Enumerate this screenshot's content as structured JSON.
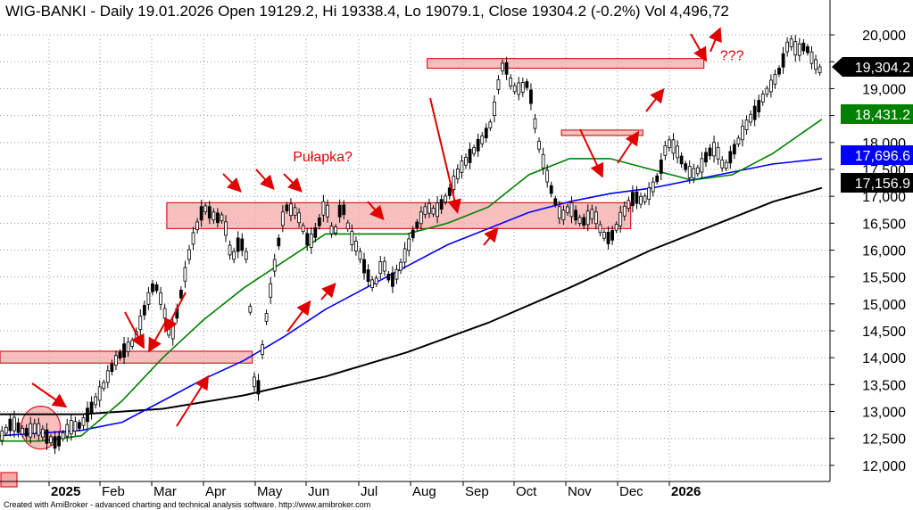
{
  "chart_data": {
    "type": "candlestick",
    "title": "WIG-BANKI - Daily 19.01.2026 Open 19129.2, Hi 19338.4, Lo 19079.1, Close 19304.2 (-0.2%) Vol 4,496,72",
    "credit": "Created with AmiBroker - advanced charting and technical analysis software. http://www.amibroker.com",
    "ylim": [
      11700,
      20250
    ],
    "yticks": [
      "12,000",
      "12,500",
      "13,000",
      "13,500",
      "14,000",
      "14,500",
      "15,000",
      "15,500",
      "16,000",
      "16,500",
      "17,000",
      "17,500",
      "18,000",
      "18,500",
      "19,000",
      "19,500",
      "20,000"
    ],
    "ytick_values": [
      12000,
      12500,
      13000,
      13500,
      14000,
      14500,
      15000,
      15500,
      16000,
      16500,
      17000,
      17500,
      18000,
      18500,
      19000,
      19500,
      20000
    ],
    "xticks": [
      {
        "label": "2025",
        "bold": true
      },
      {
        "label": "Feb",
        "bold": false
      },
      {
        "label": "Mar",
        "bold": false
      },
      {
        "label": "Apr",
        "bold": false
      },
      {
        "label": "May",
        "bold": false
      },
      {
        "label": "Jun",
        "bold": false
      },
      {
        "label": "Jul",
        "bold": false
      },
      {
        "label": "Aug",
        "bold": false
      },
      {
        "label": "Sep",
        "bold": false
      },
      {
        "label": "Oct",
        "bold": false
      },
      {
        "label": "Nov",
        "bold": false
      },
      {
        "label": "Dec",
        "bold": false
      },
      {
        "label": "2026",
        "bold": true
      }
    ],
    "price_path": [
      [
        0,
        12500
      ],
      [
        3,
        12800
      ],
      [
        6,
        12600
      ],
      [
        9,
        12700
      ],
      [
        12,
        12500
      ],
      [
        14,
        12400
      ],
      [
        17,
        12700
      ],
      [
        20,
        12750
      ],
      [
        22,
        13000
      ],
      [
        25,
        13400
      ],
      [
        28,
        13900
      ],
      [
        30,
        14100
      ],
      [
        33,
        14300
      ],
      [
        36,
        15000
      ],
      [
        38,
        15400
      ],
      [
        40,
        15000
      ],
      [
        42,
        14300
      ],
      [
        44,
        15000
      ],
      [
        47,
        16100
      ],
      [
        50,
        16800
      ],
      [
        53,
        16600
      ],
      [
        55,
        16600
      ],
      [
        57,
        15800
      ],
      [
        59,
        16200
      ],
      [
        61,
        15800
      ],
      [
        62,
        14000
      ],
      [
        63,
        13100
      ],
      [
        65,
        14500
      ],
      [
        67,
        15500
      ],
      [
        70,
        16800
      ],
      [
        73,
        16700
      ],
      [
        76,
        16100
      ],
      [
        78,
        16400
      ],
      [
        80,
        16900
      ],
      [
        82,
        16200
      ],
      [
        84,
        16900
      ],
      [
        86,
        16300
      ],
      [
        88,
        16000
      ],
      [
        90,
        15600
      ],
      [
        92,
        15300
      ],
      [
        94,
        15800
      ],
      [
        96,
        15400
      ],
      [
        98,
        15600
      ],
      [
        100,
        16000
      ],
      [
        102,
        16400
      ],
      [
        105,
        16800
      ],
      [
        107,
        16700
      ],
      [
        110,
        17000
      ],
      [
        113,
        17500
      ],
      [
        116,
        17800
      ],
      [
        119,
        18100
      ],
      [
        121,
        18400
      ],
      [
        123,
        19300
      ],
      [
        124,
        19500
      ],
      [
        126,
        19000
      ],
      [
        128,
        19000
      ],
      [
        130,
        19100
      ],
      [
        132,
        18100
      ],
      [
        134,
        17500
      ],
      [
        136,
        17000
      ],
      [
        138,
        16600
      ],
      [
        140,
        16800
      ],
      [
        143,
        16500
      ],
      [
        146,
        16700
      ],
      [
        148,
        16300
      ],
      [
        150,
        16200
      ],
      [
        152,
        16500
      ],
      [
        154,
        16800
      ],
      [
        156,
        17000
      ],
      [
        158,
        16900
      ],
      [
        160,
        17100
      ],
      [
        162,
        17400
      ],
      [
        164,
        18000
      ],
      [
        166,
        17900
      ],
      [
        168,
        17600
      ],
      [
        170,
        17400
      ],
      [
        172,
        17500
      ],
      [
        174,
        17800
      ],
      [
        176,
        17900
      ],
      [
        178,
        17500
      ],
      [
        180,
        17800
      ],
      [
        182,
        18100
      ],
      [
        184,
        18400
      ],
      [
        186,
        18600
      ],
      [
        188,
        18900
      ],
      [
        190,
        19100
      ],
      [
        192,
        19400
      ],
      [
        194,
        19900
      ],
      [
        196,
        19700
      ],
      [
        198,
        19800
      ],
      [
        200,
        19500
      ],
      [
        202,
        19300
      ]
    ],
    "ma_short_path": [
      [
        0,
        12450
      ],
      [
        10,
        12450
      ],
      [
        20,
        12550
      ],
      [
        30,
        13200
      ],
      [
        40,
        14000
      ],
      [
        50,
        14700
      ],
      [
        60,
        15300
      ],
      [
        70,
        15800
      ],
      [
        80,
        16300
      ],
      [
        90,
        16300
      ],
      [
        100,
        16300
      ],
      [
        110,
        16500
      ],
      [
        120,
        16800
      ],
      [
        130,
        17400
      ],
      [
        140,
        17700
      ],
      [
        150,
        17700
      ],
      [
        160,
        17500
      ],
      [
        170,
        17300
      ],
      [
        180,
        17400
      ],
      [
        190,
        17800
      ],
      [
        202,
        18431
      ]
    ],
    "ma_long_path": [
      [
        0,
        12550
      ],
      [
        10,
        12600
      ],
      [
        20,
        12650
      ],
      [
        30,
        12800
      ],
      [
        40,
        13200
      ],
      [
        50,
        13600
      ],
      [
        60,
        13950
      ],
      [
        70,
        14400
      ],
      [
        80,
        14900
      ],
      [
        90,
        15300
      ],
      [
        100,
        15700
      ],
      [
        110,
        16100
      ],
      [
        120,
        16400
      ],
      [
        130,
        16700
      ],
      [
        140,
        16900
      ],
      [
        150,
        17050
      ],
      [
        160,
        17150
      ],
      [
        170,
        17300
      ],
      [
        180,
        17450
      ],
      [
        190,
        17600
      ],
      [
        202,
        17696
      ]
    ],
    "ma_200_path": [
      [
        0,
        12950
      ],
      [
        20,
        12950
      ],
      [
        40,
        13050
      ],
      [
        60,
        13300
      ],
      [
        80,
        13650
      ],
      [
        100,
        14100
      ],
      [
        120,
        14650
      ],
      [
        140,
        15300
      ],
      [
        160,
        16000
      ],
      [
        180,
        16600
      ],
      [
        190,
        16900
      ],
      [
        202,
        17157
      ]
    ],
    "price_badges": [
      {
        "label": "19,304.2",
        "value": 19304.2,
        "bg": "#000000",
        "fg": "#ffffff",
        "arrow": true
      },
      {
        "label": "18,431.2",
        "value": 18431.2,
        "bg": "#008000",
        "fg": "#ffffff",
        "arrow": false
      },
      {
        "label": "17,696.6",
        "value": 17696.6,
        "bg": "#0000ff",
        "fg": "#ffffff",
        "arrow": false
      },
      {
        "label": "17,156.9",
        "value": 17156.9,
        "bg": "#000000",
        "fg": "#ffffff",
        "arrow": false
      }
    ],
    "zones": [
      {
        "x0": 0,
        "x1": 62,
        "y0": 13900,
        "y1": 14120
      },
      {
        "x0": 41,
        "x1": 155,
        "y0": 16400,
        "y1": 16880
      },
      {
        "x0": 105,
        "x1": 173,
        "y0": 19380,
        "y1": 19560
      },
      {
        "x0": 138,
        "x1": 158,
        "y0": 18130,
        "y1": 18230
      }
    ],
    "annotations": [
      {
        "text": "Pułapka?",
        "x": 72,
        "y": 17650
      },
      {
        "text": "???",
        "x": 177,
        "y": 19530
      }
    ],
    "colors": {
      "price": "#000000",
      "ma_short": "#008000",
      "ma_long": "#0000ff",
      "ma_200": "#000000",
      "zone_fill": "#f6a9a9",
      "zone_stroke": "#d81b1b",
      "arrow": "#e00000"
    }
  }
}
